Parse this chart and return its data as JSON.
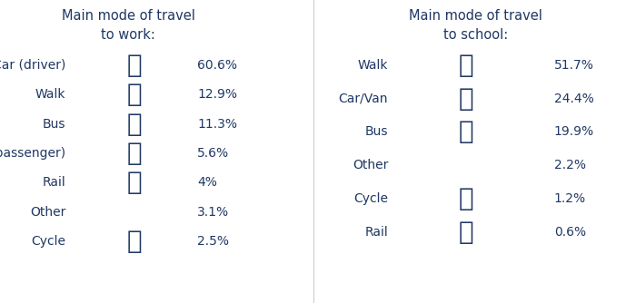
{
  "title_work": "Main mode of travel\nto work:",
  "title_school": "Main mode of travel\nto school:",
  "work_items": [
    {
      "label": "Car (driver)",
      "icon": "car",
      "pct": "60.6%"
    },
    {
      "label": "Walk",
      "icon": "walk",
      "pct": "12.9%"
    },
    {
      "label": "Bus",
      "icon": "bus",
      "pct": "11.3%"
    },
    {
      "label": "Car(passenger)",
      "icon": "car",
      "pct": "5.6%"
    },
    {
      "label": "Rail",
      "icon": "rail",
      "pct": "4%"
    },
    {
      "label": "Other",
      "icon": "",
      "pct": "3.1%"
    },
    {
      "label": "Cycle",
      "icon": "cycle",
      "pct": "2.5%"
    }
  ],
  "school_items": [
    {
      "label": "Walk",
      "icon": "walk",
      "pct": "51.7%"
    },
    {
      "label": "Car/Van",
      "icon": "car",
      "pct": "24.4%"
    },
    {
      "label": "Bus",
      "icon": "bus",
      "pct": "19.9%"
    },
    {
      "label": "Other",
      "icon": "",
      "pct": "2.2%"
    },
    {
      "label": "Cycle",
      "icon": "cycle",
      "pct": "1.2%"
    },
    {
      "label": "Rail",
      "icon": "rail",
      "pct": "0.6%"
    }
  ],
  "text_color": "#1F3864",
  "bg_color": "#ffffff",
  "title_fontsize": 10.5,
  "label_fontsize": 10,
  "pct_fontsize": 10,
  "icon_fontsize": 20
}
